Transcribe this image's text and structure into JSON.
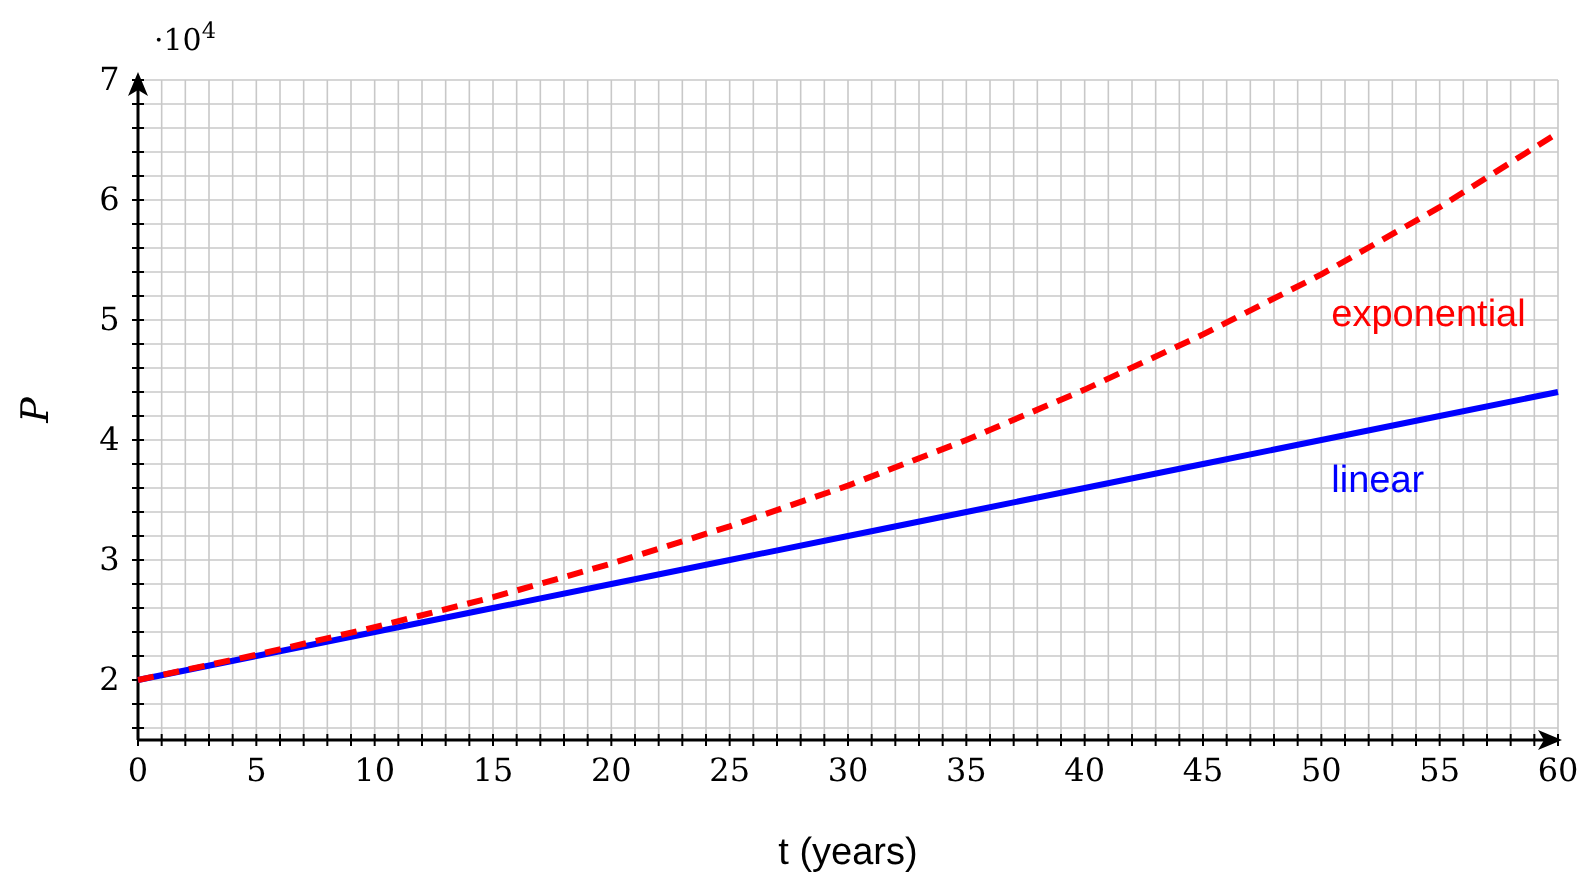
{
  "chart_data": {
    "type": "line",
    "xlabel": "t (years)",
    "ylabel": "P",
    "annotations": [
      "·10$^{4}$"
    ],
    "x": [
      0,
      5,
      10,
      15,
      20,
      25,
      30,
      35,
      40,
      45,
      50,
      55,
      60
    ],
    "series": [
      {
        "name": "linear",
        "color": "#0000ff",
        "line_style": "solid",
        "values": [
          2,
          2.2,
          2.4,
          2.6,
          2.8,
          3,
          3.2,
          3.4,
          3.6,
          3.8,
          4,
          4.2,
          4.4
        ]
      },
      {
        "name": "exponential",
        "color": "#ff0000",
        "line_style": "dashed",
        "values": [
          2,
          2.21,
          2.44,
          2.69,
          2.97,
          3.28,
          3.62,
          4,
          4.42,
          4.88,
          5.38,
          5.94,
          6.56
        ]
      }
    ],
    "xlim": [
      0,
      60
    ],
    "ylim": [
      1.5,
      7
    ],
    "xticks": [
      0,
      {
        "value": 1,
        "label": null
      },
      {
        "value": 2,
        "label": null
      },
      {
        "value": 3,
        "label": null
      },
      {
        "value": 4,
        "label": null
      },
      5,
      {
        "value": 6,
        "label": null
      },
      {
        "value": 7,
        "label": null
      },
      {
        "value": 8,
        "label": null
      },
      {
        "value": 9,
        "label": null
      },
      10,
      {
        "value": 11,
        "label": null
      },
      {
        "value": 12,
        "label": null
      },
      {
        "value": 13,
        "label": null
      },
      {
        "value": 14,
        "label": null
      },
      15,
      {
        "value": 16,
        "label": null
      },
      {
        "value": 17,
        "label": null
      },
      {
        "value": 18,
        "label": null
      },
      {
        "value": 19,
        "label": null
      },
      20,
      {
        "value": 21,
        "label": null
      },
      {
        "value": 22,
        "label": null
      },
      {
        "value": 23,
        "label": null
      },
      {
        "value": 24,
        "label": null
      },
      25,
      {
        "value": 26,
        "label": null
      },
      {
        "value": 27,
        "label": null
      },
      {
        "value": 28,
        "label": null
      },
      {
        "value": 29,
        "label": null
      },
      30,
      {
        "value": 31,
        "label": null
      },
      {
        "value": 32,
        "label": null
      },
      {
        "value": 33,
        "label": null
      },
      {
        "value": 34,
        "label": null
      },
      35,
      {
        "value": 36,
        "label": null
      },
      {
        "value": 37,
        "label": null
      },
      {
        "value": 38,
        "label": null
      },
      {
        "value": 39,
        "label": null
      },
      40,
      {
        "value": 41,
        "label": null
      },
      {
        "value": 42,
        "label": null
      },
      {
        "value": 43,
        "label": null
      },
      {
        "value": 44,
        "label": null
      },
      45,
      {
        "value": 46,
        "label": null
      },
      {
        "value": 47,
        "label": null
      },
      {
        "value": 48,
        "label": null
      },
      {
        "value": 49,
        "label": null
      },
      50,
      {
        "value": 51,
        "label": null
      },
      {
        "value": 52,
        "label": null
      },
      {
        "value": 53,
        "label": null
      },
      {
        "value": 54,
        "label": null
      },
      55,
      {
        "value": 56,
        "label": null
      },
      {
        "value": 57,
        "label": null
      },
      {
        "value": 58,
        "label": null
      },
      {
        "value": 59,
        "label": null
      },
      60
    ],
    "yticks": [
      {
        "value": 1.6,
        "label": null
      },
      {
        "value": 1.8,
        "label": null
      },
      2,
      {
        "value": 2.2,
        "label": null
      },
      {
        "value": 2.4,
        "label": null
      },
      {
        "value": 2.6,
        "label": null
      },
      {
        "value": 2.8,
        "label": null
      },
      3,
      {
        "value": 3.2,
        "label": null
      },
      {
        "value": 3.4,
        "label": null
      },
      {
        "value": 3.6,
        "label": null
      },
      {
        "value": 3.8,
        "label": null
      },
      4,
      {
        "value": 4.2,
        "label": null
      },
      {
        "value": 4.4,
        "label": null
      },
      {
        "value": 4.6,
        "label": null
      },
      {
        "value": 4.8,
        "label": null
      },
      5,
      {
        "value": 5.2,
        "label": null
      },
      {
        "value": 5.4,
        "label": null
      },
      {
        "value": 5.6,
        "label": null
      },
      {
        "value": 5.8,
        "label": null
      },
      6,
      {
        "value": 6.2,
        "label": null
      },
      {
        "value": 6.4,
        "label": null
      },
      {
        "value": 6.6,
        "label": null
      },
      {
        "value": 6.8,
        "label": null
      },
      7
    ],
    "grid": true
  }
}
